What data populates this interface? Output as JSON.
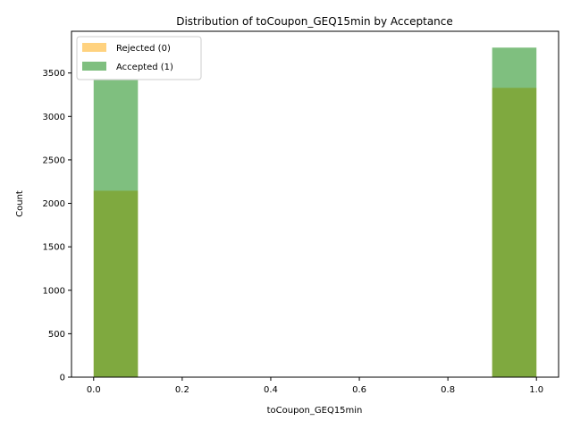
{
  "chart_data": {
    "type": "bar",
    "title": "Distribution of toCoupon_GEQ15min by Acceptance",
    "xlabel": "toCoupon_GEQ15min",
    "ylabel": "Count",
    "xlim": [
      -0.05,
      1.05
    ],
    "ylim": [
      0,
      3980
    ],
    "xticks": [
      "0.0",
      "0.2",
      "0.4",
      "0.6",
      "0.8",
      "1.0"
    ],
    "xtick_values": [
      0.0,
      0.2,
      0.4,
      0.6,
      0.8,
      1.0
    ],
    "yticks": [
      "0",
      "500",
      "1000",
      "1500",
      "2000",
      "2500",
      "3000",
      "3500"
    ],
    "ytick_values": [
      0,
      500,
      1000,
      1500,
      2000,
      2500,
      3000,
      3500
    ],
    "legend_position": "top-left",
    "grid": false,
    "series": [
      {
        "name": "Rejected (0)",
        "color": "#ffa500",
        "alpha": 0.5,
        "bins": [
          {
            "start": 0.0,
            "end": 0.1,
            "value": 2145
          },
          {
            "start": 0.9,
            "end": 1.0,
            "value": 3329
          }
        ]
      },
      {
        "name": "Accepted (1)",
        "color": "#008000",
        "alpha": 0.5,
        "bins": [
          {
            "start": 0.0,
            "end": 0.1,
            "value": 3418
          },
          {
            "start": 0.9,
            "end": 1.0,
            "value": 3792
          }
        ]
      }
    ]
  }
}
